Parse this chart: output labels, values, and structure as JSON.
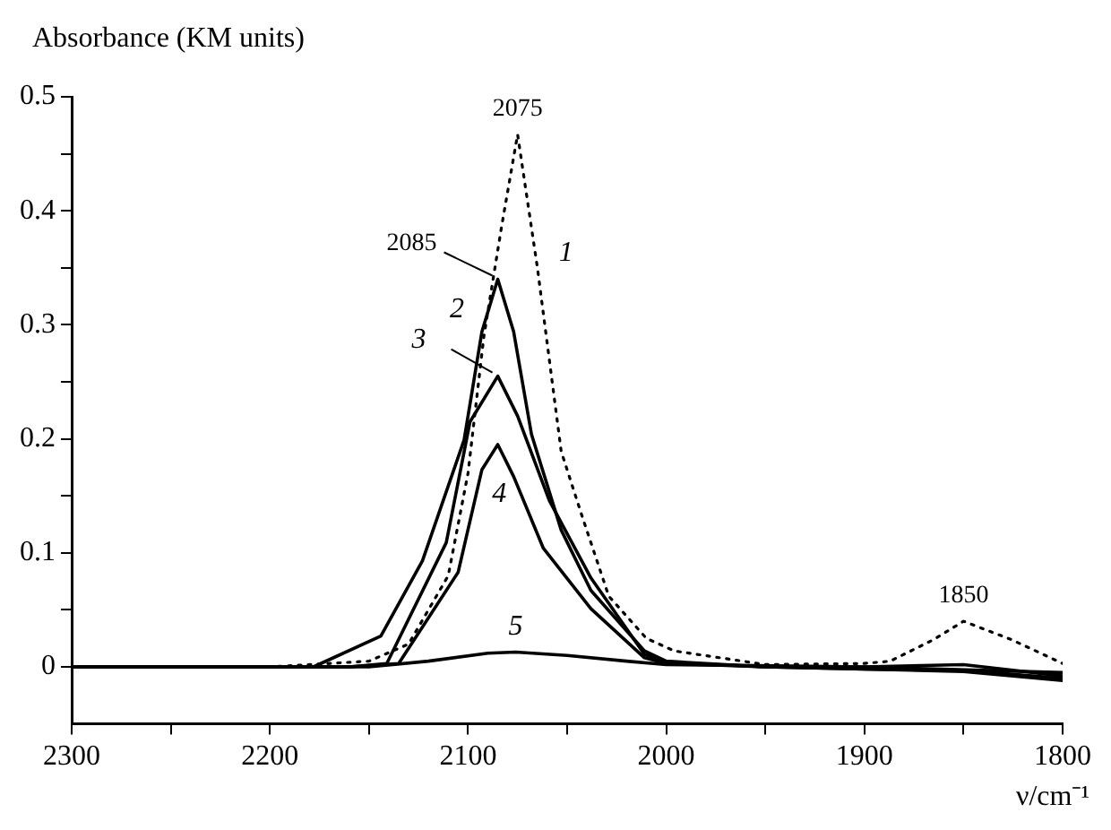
{
  "chart_data": {
    "type": "line",
    "ylabel": "Absorbance (KM units)",
    "xlabel": "ν/cm⁻¹",
    "xlim": [
      2300,
      1800
    ],
    "xticks": [
      2300,
      {
        "value": 2250,
        "label": null
      },
      2200,
      {
        "value": 2150,
        "label": null
      },
      2100,
      {
        "value": 2050,
        "label": null
      },
      2000,
      {
        "value": 1950,
        "label": null
      },
      1900,
      {
        "value": 1850,
        "label": null
      },
      1800
    ],
    "ylim": [
      -0.05,
      0.5
    ],
    "yticks": [
      0,
      {
        "value": 0.05,
        "label": null
      },
      0.1,
      {
        "value": 0.15,
        "label": null
      },
      0.2,
      {
        "value": 0.25,
        "label": null
      },
      0.3,
      {
        "value": 0.35,
        "label": null
      },
      0.4,
      {
        "value": 0.45,
        "label": null
      },
      0.5
    ],
    "grid": false,
    "legend": false,
    "marker": "none",
    "series": [
      {
        "color": "#000000",
        "line_style": "dotted",
        "x": [
          2300,
          2200,
          2150,
          2130,
          2110,
          2100,
          2092,
          2083,
          2075,
          2065,
          2053,
          2043,
          2029,
          2010,
          1996,
          1950,
          1900,
          1887,
          1865,
          1850,
          1826,
          1800
        ],
        "values": [
          0,
          0,
          0.005,
          0.02,
          0.08,
          0.17,
          0.29,
          0.387,
          0.467,
          0.35,
          0.189,
          0.135,
          0.062,
          0.025,
          0.014,
          0.002,
          0.003,
          0.005,
          0.024,
          0.04,
          0.024,
          0.003
        ]
      },
      {
        "color": "#000000",
        "line_style": "solid",
        "x": [
          2300,
          2178,
          2144,
          2123,
          2102,
          2093,
          2085,
          2077,
          2068,
          2053,
          2038,
          2011,
          2000,
          1950,
          1900,
          1850,
          1800
        ],
        "values": [
          0,
          0,
          0.027,
          0.093,
          0.199,
          0.294,
          0.34,
          0.294,
          0.204,
          0.12,
          0.067,
          0.014,
          0.005,
          0,
          0,
          0.002,
          -0.008
        ]
      },
      {
        "color": "#000000",
        "line_style": "solid",
        "x": [
          2300,
          2160,
          2141,
          2111,
          2099,
          2085,
          2075,
          2059,
          2038,
          2011,
          2000,
          1950,
          1900,
          1850,
          1800
        ],
        "values": [
          0,
          0,
          0.003,
          0.109,
          0.215,
          0.255,
          0.22,
          0.146,
          0.078,
          0.011,
          0.004,
          0,
          -0.002,
          -0.003,
          -0.01
        ]
      },
      {
        "color": "#000000",
        "line_style": "solid",
        "x": [
          2300,
          2160,
          2135,
          2105,
          2093,
          2085,
          2077,
          2062,
          2038,
          2011,
          2000,
          1950,
          1900,
          1850,
          1800
        ],
        "values": [
          0,
          0,
          0.003,
          0.083,
          0.173,
          0.195,
          0.167,
          0.104,
          0.051,
          0.008,
          0.003,
          0,
          -0.002,
          -0.004,
          -0.012
        ]
      },
      {
        "color": "#000000",
        "line_style": "solid",
        "x": [
          2300,
          2150,
          2120,
          2090,
          2076,
          2050,
          2020,
          2000,
          1900,
          1800
        ],
        "values": [
          0,
          0,
          0.005,
          0.012,
          0.013,
          0.01,
          0.005,
          0.002,
          0,
          -0.005
        ]
      }
    ],
    "annotations": [
      {
        "text": "2075",
        "x": 2075,
        "y": 0.467
      },
      {
        "text": "2085",
        "x": 2085,
        "y": 0.34
      },
      {
        "text": "1850",
        "x": 1850,
        "y": 0.04
      },
      {
        "text": "1",
        "x": 2065,
        "y": 0.35
      },
      {
        "text": "2",
        "x": 2093,
        "y": 0.294
      },
      {
        "text": "3",
        "x": 2085,
        "y": 0.255
      },
      {
        "text": "4",
        "x": 2077,
        "y": 0.167
      },
      {
        "text": "5",
        "x": 2076,
        "y": 0.013
      }
    ]
  }
}
